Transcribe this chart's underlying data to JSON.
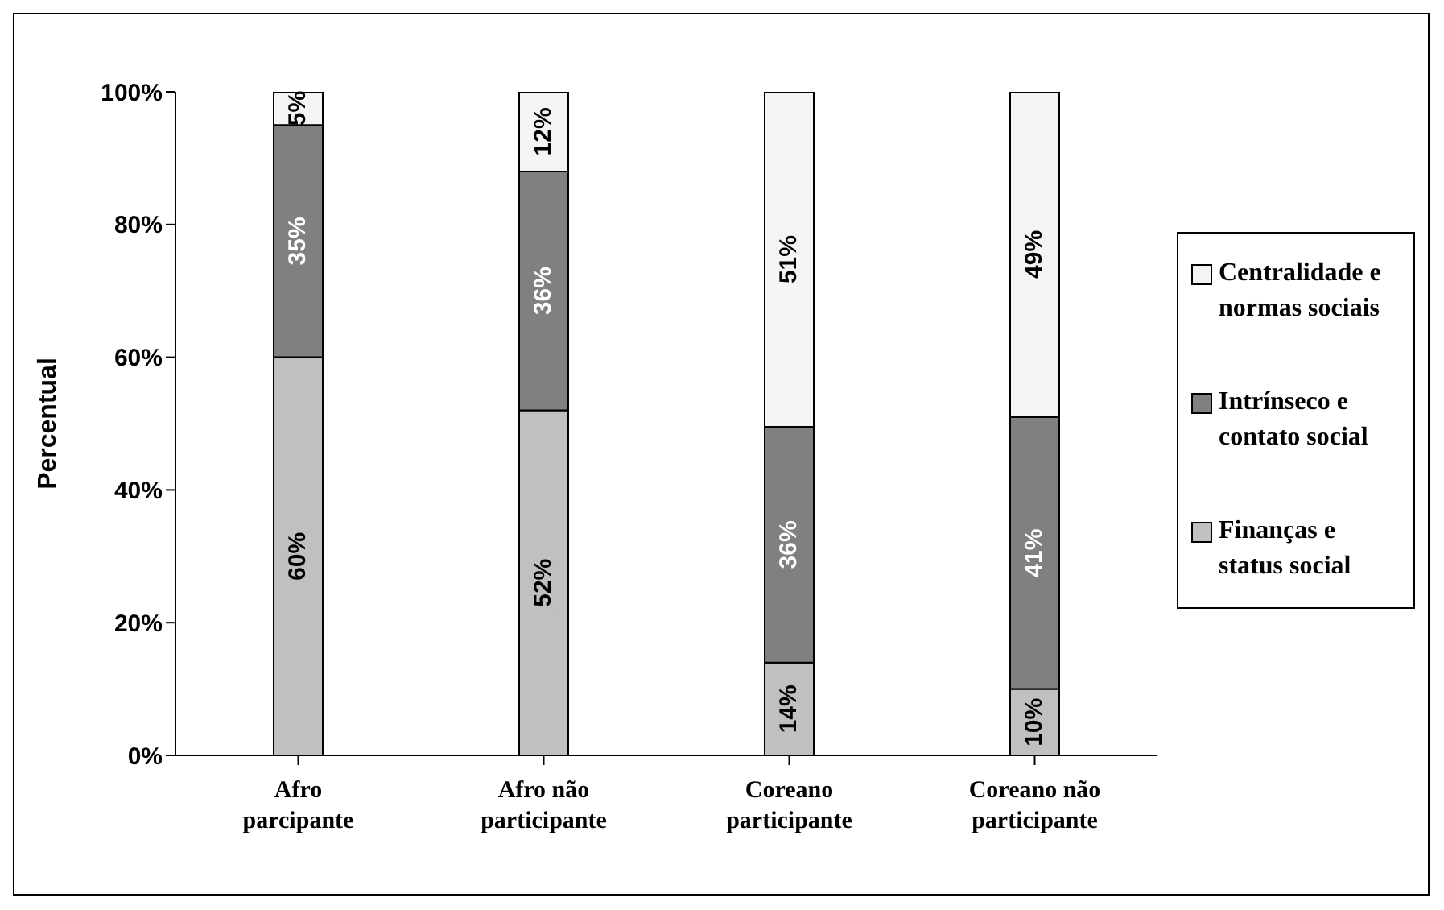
{
  "chart_data": {
    "type": "bar",
    "stacked": true,
    "ylabel": "Percentual",
    "categories": [
      "Afro parcipante",
      "Afro não participante",
      "Coreano participante",
      "Coreano não participante"
    ],
    "series": [
      {
        "name": "Finanças e status social",
        "color": "#c0c0c0",
        "values": [
          60,
          52,
          14,
          10
        ],
        "value_labels": [
          "60%",
          "52%",
          "14%",
          "10%"
        ]
      },
      {
        "name": "Intrínseco e contato social",
        "color": "#808080",
        "values": [
          35,
          36,
          35.5,
          41
        ],
        "value_labels": [
          "35%",
          "36%",
          "36%",
          "41%"
        ]
      },
      {
        "name": "Centralidade e normas sociais",
        "color": "#f4f4f4",
        "values": [
          5,
          12,
          50.5,
          49
        ],
        "value_labels": [
          "5%",
          "12%",
          "51%",
          "49%"
        ]
      }
    ],
    "ylim": [
      0,
      100
    ],
    "yticks": [
      {
        "value": 0,
        "label": "0%"
      },
      {
        "value": 20,
        "label": "20%"
      },
      {
        "value": 40,
        "label": "40%"
      },
      {
        "value": 60,
        "label": "60%"
      },
      {
        "value": 80,
        "label": "80%"
      },
      {
        "value": 100,
        "label": "100%"
      }
    ],
    "grid": false,
    "legend": "right"
  }
}
